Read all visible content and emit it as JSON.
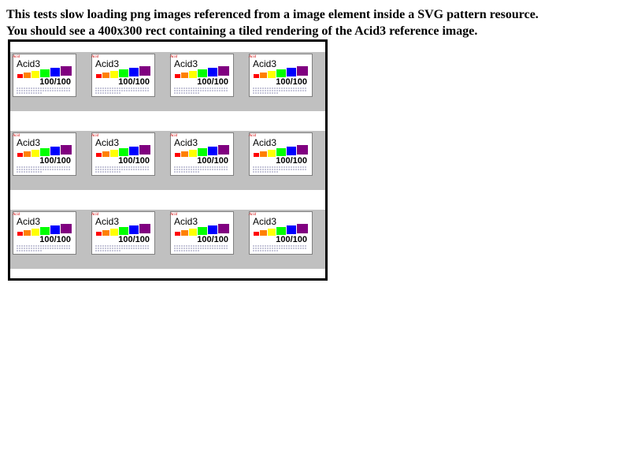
{
  "description": {
    "line1": "This tests slow loading png images referenced from a image element inside a SVG pattern resource.",
    "line2": "You should see a 400x300 rect containing a tiled rendering of the Acid3 reference image."
  },
  "tile": {
    "title": "Acid3",
    "score": "100/100",
    "logo_text": "Acid"
  },
  "colors": {
    "band": "#c0c0c0",
    "tile_bg": "#ffffff",
    "tile_border": "#808080",
    "boxes": [
      "#ff0000",
      "#ff8000",
      "#ffff00",
      "#00ff00",
      "#0000ff",
      "#800080"
    ]
  },
  "grid": {
    "columns": 4,
    "rows": 3
  }
}
